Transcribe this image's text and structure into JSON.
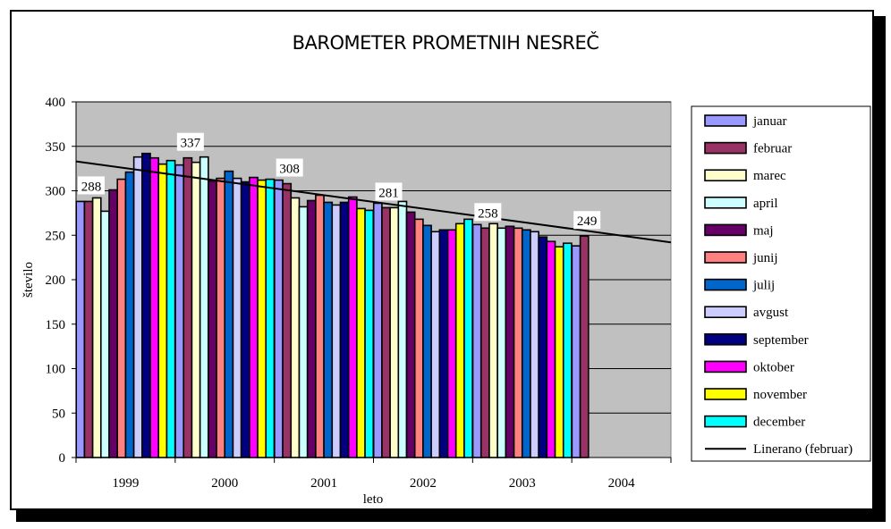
{
  "chart_data": {
    "type": "bar",
    "title": "BAROMETER PROMETNIH NESREČ",
    "xlabel": "leto",
    "ylabel": "število",
    "ylim": [
      0,
      400
    ],
    "yticks": [
      0,
      50,
      100,
      150,
      200,
      250,
      300,
      350,
      400
    ],
    "grid": true,
    "legend_position": "right",
    "categories": [
      "1999",
      "2000",
      "2001",
      "2002",
      "2003",
      "2004"
    ],
    "series": [
      {
        "name": "januar",
        "color": "#9999FF",
        "values": [
          288,
          329,
          312,
          286,
          262,
          238
        ]
      },
      {
        "name": "februar",
        "color": "#993366",
        "values": [
          288,
          337,
          308,
          281,
          258,
          249
        ]
      },
      {
        "name": "marec",
        "color": "#FFFFCC",
        "values": [
          292,
          332,
          292,
          281,
          263,
          null
        ]
      },
      {
        "name": "april",
        "color": "#CCFFFF",
        "values": [
          277,
          338,
          282,
          288,
          258,
          null
        ]
      },
      {
        "name": "maj",
        "color": "#660066",
        "values": [
          301,
          311,
          289,
          276,
          260,
          null
        ]
      },
      {
        "name": "junij",
        "color": "#FF8080",
        "values": [
          313,
          314,
          295,
          268,
          258,
          null
        ]
      },
      {
        "name": "julij",
        "color": "#0066CC",
        "values": [
          321,
          322,
          287,
          261,
          256,
          null
        ]
      },
      {
        "name": "avgust",
        "color": "#CCCCFF",
        "values": [
          338,
          314,
          284,
          254,
          254,
          null
        ]
      },
      {
        "name": "september",
        "color": "#000080",
        "values": [
          342,
          310,
          287,
          256,
          248,
          null
        ]
      },
      {
        "name": "oktober",
        "color": "#FF00FF",
        "values": [
          337,
          315,
          293,
          256,
          243,
          null
        ]
      },
      {
        "name": "november",
        "color": "#FFFF00",
        "values": [
          330,
          312,
          280,
          263,
          237,
          null
        ]
      },
      {
        "name": "december",
        "color": "#00FFFF",
        "values": [
          334,
          313,
          278,
          268,
          241,
          null
        ]
      }
    ],
    "data_labels": [
      {
        "category": "1999",
        "series": "februar",
        "value": 288
      },
      {
        "category": "2000",
        "series": "februar",
        "value": 337
      },
      {
        "category": "2001",
        "series": "februar",
        "value": 308
      },
      {
        "category": "2002",
        "series": "februar",
        "value": 281
      },
      {
        "category": "2003",
        "series": "februar",
        "value": 258
      },
      {
        "category": "2004",
        "series": "februar",
        "value": 249
      }
    ],
    "trendline": {
      "name": "Linerano (februar)",
      "color": "#000000",
      "start": 333,
      "end": 242
    }
  }
}
